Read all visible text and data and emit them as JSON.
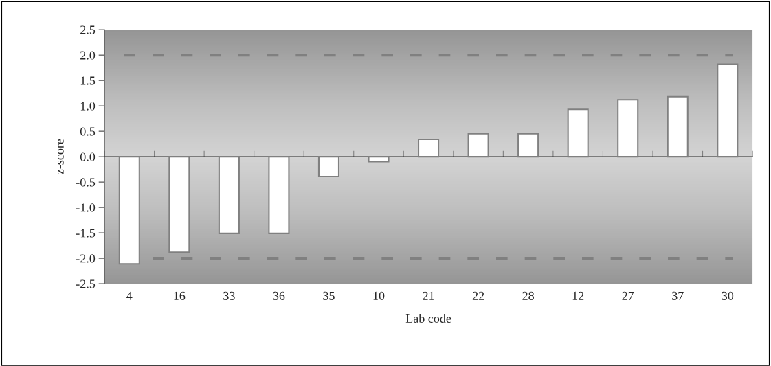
{
  "chart_data": {
    "type": "bar",
    "xlabel": "Lab code",
    "ylabel": "z-score",
    "categories": [
      "4",
      "16",
      "33",
      "36",
      "35",
      "10",
      "21",
      "22",
      "28",
      "12",
      "27",
      "37",
      "30"
    ],
    "values": [
      -2.11,
      -1.88,
      -1.51,
      -1.51,
      -0.39,
      -0.1,
      0.34,
      0.45,
      0.45,
      0.93,
      1.12,
      1.18,
      1.82
    ],
    "color": "#ffffff",
    "ylim": [
      -2.5,
      2.5
    ],
    "yticks": [
      {
        "value": 2.5,
        "label": "2.5"
      },
      {
        "value": 2.0,
        "label": "2.0"
      },
      {
        "value": 1.5,
        "label": "1.5"
      },
      {
        "value": 1.0,
        "label": "1.0"
      },
      {
        "value": 0.5,
        "label": "0.5"
      },
      {
        "value": 0.0,
        "label": "0.0"
      },
      {
        "value": -0.5,
        "label": "-0.5"
      },
      {
        "value": -1.0,
        "label": "-1.0"
      },
      {
        "value": -1.5,
        "label": "-1.5"
      },
      {
        "value": -2.0,
        "label": "-2.0"
      },
      {
        "value": -2.5,
        "label": "-2.5"
      }
    ],
    "ref_lines": [
      {
        "axis": "y",
        "value": 2.0,
        "color": "#808080",
        "line_style": "dashed"
      },
      {
        "axis": "y",
        "value": -2.0,
        "color": "#808080",
        "line_style": "dashed"
      }
    ],
    "grid": false,
    "legend": false
  }
}
